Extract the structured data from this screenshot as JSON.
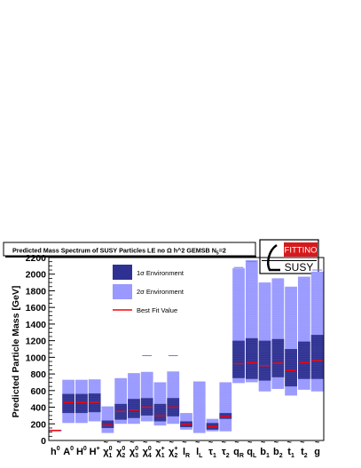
{
  "chart_data": {
    "type": "bar",
    "title": "Predicted Mass Spectrum of SUSY Particles LE no Ω h^2 GEMSB N",
    "title_subscript": "5",
    "title_suffix": "=2",
    "ylabel": "Predicted Particle Mass [GeV]",
    "ylim": [
      0,
      2200
    ],
    "yticks": [
      0,
      200,
      400,
      600,
      800,
      1000,
      1200,
      1400,
      1600,
      1800,
      2000,
      2200
    ],
    "categories": [
      {
        "base": "h",
        "sup": "0",
        "tilde": false
      },
      {
        "base": "A",
        "sup": "0",
        "tilde": false
      },
      {
        "base": "H",
        "sup": "0",
        "tilde": false
      },
      {
        "base": "H",
        "sup": "+",
        "tilde": false
      },
      {
        "base": "χ",
        "sup": "0",
        "sub": "1",
        "tilde": true
      },
      {
        "base": "χ",
        "sup": "0",
        "sub": "2",
        "tilde": true
      },
      {
        "base": "χ",
        "sup": "0",
        "sub": "3",
        "tilde": true
      },
      {
        "base": "χ",
        "sup": "0",
        "sub": "4",
        "tilde": true
      },
      {
        "base": "χ",
        "sup": "+",
        "sub": "1",
        "tilde": true
      },
      {
        "base": "χ",
        "sup": "+",
        "sub": "2",
        "tilde": true
      },
      {
        "base": "l",
        "sub": "R",
        "tilde": true
      },
      {
        "base": "l",
        "sub": "L",
        "tilde": true
      },
      {
        "base": "τ",
        "sub": "1",
        "tilde": true
      },
      {
        "base": "τ",
        "sub": "2",
        "tilde": true
      },
      {
        "base": "q",
        "sub": "R",
        "tilde": true
      },
      {
        "base": "q",
        "sub": "L",
        "tilde": true
      },
      {
        "base": "b",
        "sub": "1",
        "tilde": true
      },
      {
        "base": "b",
        "sub": "2",
        "tilde": true
      },
      {
        "base": "t",
        "sub": "1",
        "tilde": true
      },
      {
        "base": "t",
        "sub": "2",
        "tilde": true
      },
      {
        "base": "g",
        "tilde": true
      }
    ],
    "series": [
      {
        "name": "1σ Environment",
        "color": "#2e3192",
        "ranges": [
          [
            115,
            125
          ],
          [
            330,
            560
          ],
          [
            330,
            560
          ],
          [
            340,
            565
          ],
          [
            150,
            240
          ],
          [
            250,
            440
          ],
          [
            270,
            500
          ],
          [
            300,
            510
          ],
          [
            230,
            440
          ],
          [
            290,
            510
          ],
          [
            160,
            230
          ],
          [
            0,
            0
          ],
          [
            130,
            210
          ],
          [
            260,
            330
          ],
          [
            750,
            1200
          ],
          [
            740,
            1230
          ],
          [
            720,
            1200
          ],
          [
            760,
            1220
          ],
          [
            650,
            1100
          ],
          [
            740,
            1190
          ],
          [
            740,
            1270
          ]
        ]
      },
      {
        "name": "2σ Environment",
        "color": "#9999ff",
        "ranges": [
          [
            110,
            130
          ],
          [
            210,
            730
          ],
          [
            210,
            730
          ],
          [
            230,
            735
          ],
          [
            90,
            410
          ],
          [
            200,
            750
          ],
          [
            200,
            810
          ],
          [
            230,
            825
          ],
          [
            180,
            700
          ],
          [
            200,
            830
          ],
          [
            130,
            330
          ],
          [
            90,
            710
          ],
          [
            110,
            260
          ],
          [
            110,
            700
          ],
          [
            690,
            2070
          ],
          [
            700,
            2170
          ],
          [
            590,
            1900
          ],
          [
            620,
            1950
          ],
          [
            540,
            1850
          ],
          [
            610,
            1970
          ],
          [
            590,
            2030
          ]
        ]
      },
      {
        "name": "Best Fit Value",
        "color": "#ff0000",
        "values": [
          120,
          455,
          455,
          460,
          185,
          350,
          365,
          400,
          300,
          400,
          190,
          0,
          165,
          290,
          925,
          935,
          900,
          930,
          840,
          935,
          960
        ]
      }
    ],
    "outliers": [
      {
        "category": 7,
        "value": 1020
      },
      {
        "category": 9,
        "value": 1020
      },
      {
        "category": 14,
        "value": 2080
      },
      {
        "category": 15,
        "value": 2150
      },
      {
        "category": 20,
        "value": 2050
      }
    ],
    "legend": {
      "placement": "top-center",
      "entries": [
        "1σ Environment",
        "2σ Environment",
        "Best Fit Value"
      ]
    },
    "grid": false,
    "logo": {
      "line1": "FITTINO",
      "line2": "SUSY",
      "accent": "#d7191c"
    }
  }
}
